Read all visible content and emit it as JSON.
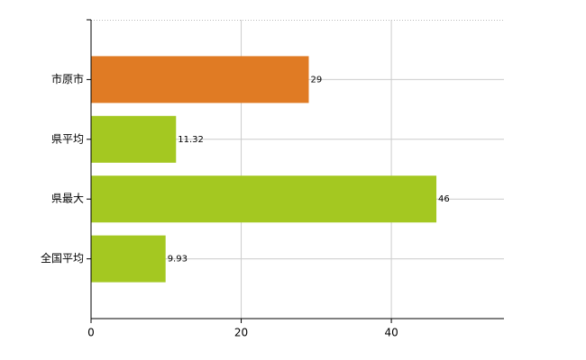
{
  "chart_data": {
    "type": "bar",
    "orientation": "horizontal",
    "categories": [
      "市原市",
      "県平均",
      "県最大",
      "全国平均"
    ],
    "values": [
      29,
      11.32,
      46,
      9.93
    ],
    "colors": [
      "#e07b24",
      "#a4c821",
      "#a4c821",
      "#a4c821"
    ],
    "xlim": [
      0,
      55
    ],
    "xticks": [
      0,
      20,
      40
    ],
    "grid": true
  }
}
